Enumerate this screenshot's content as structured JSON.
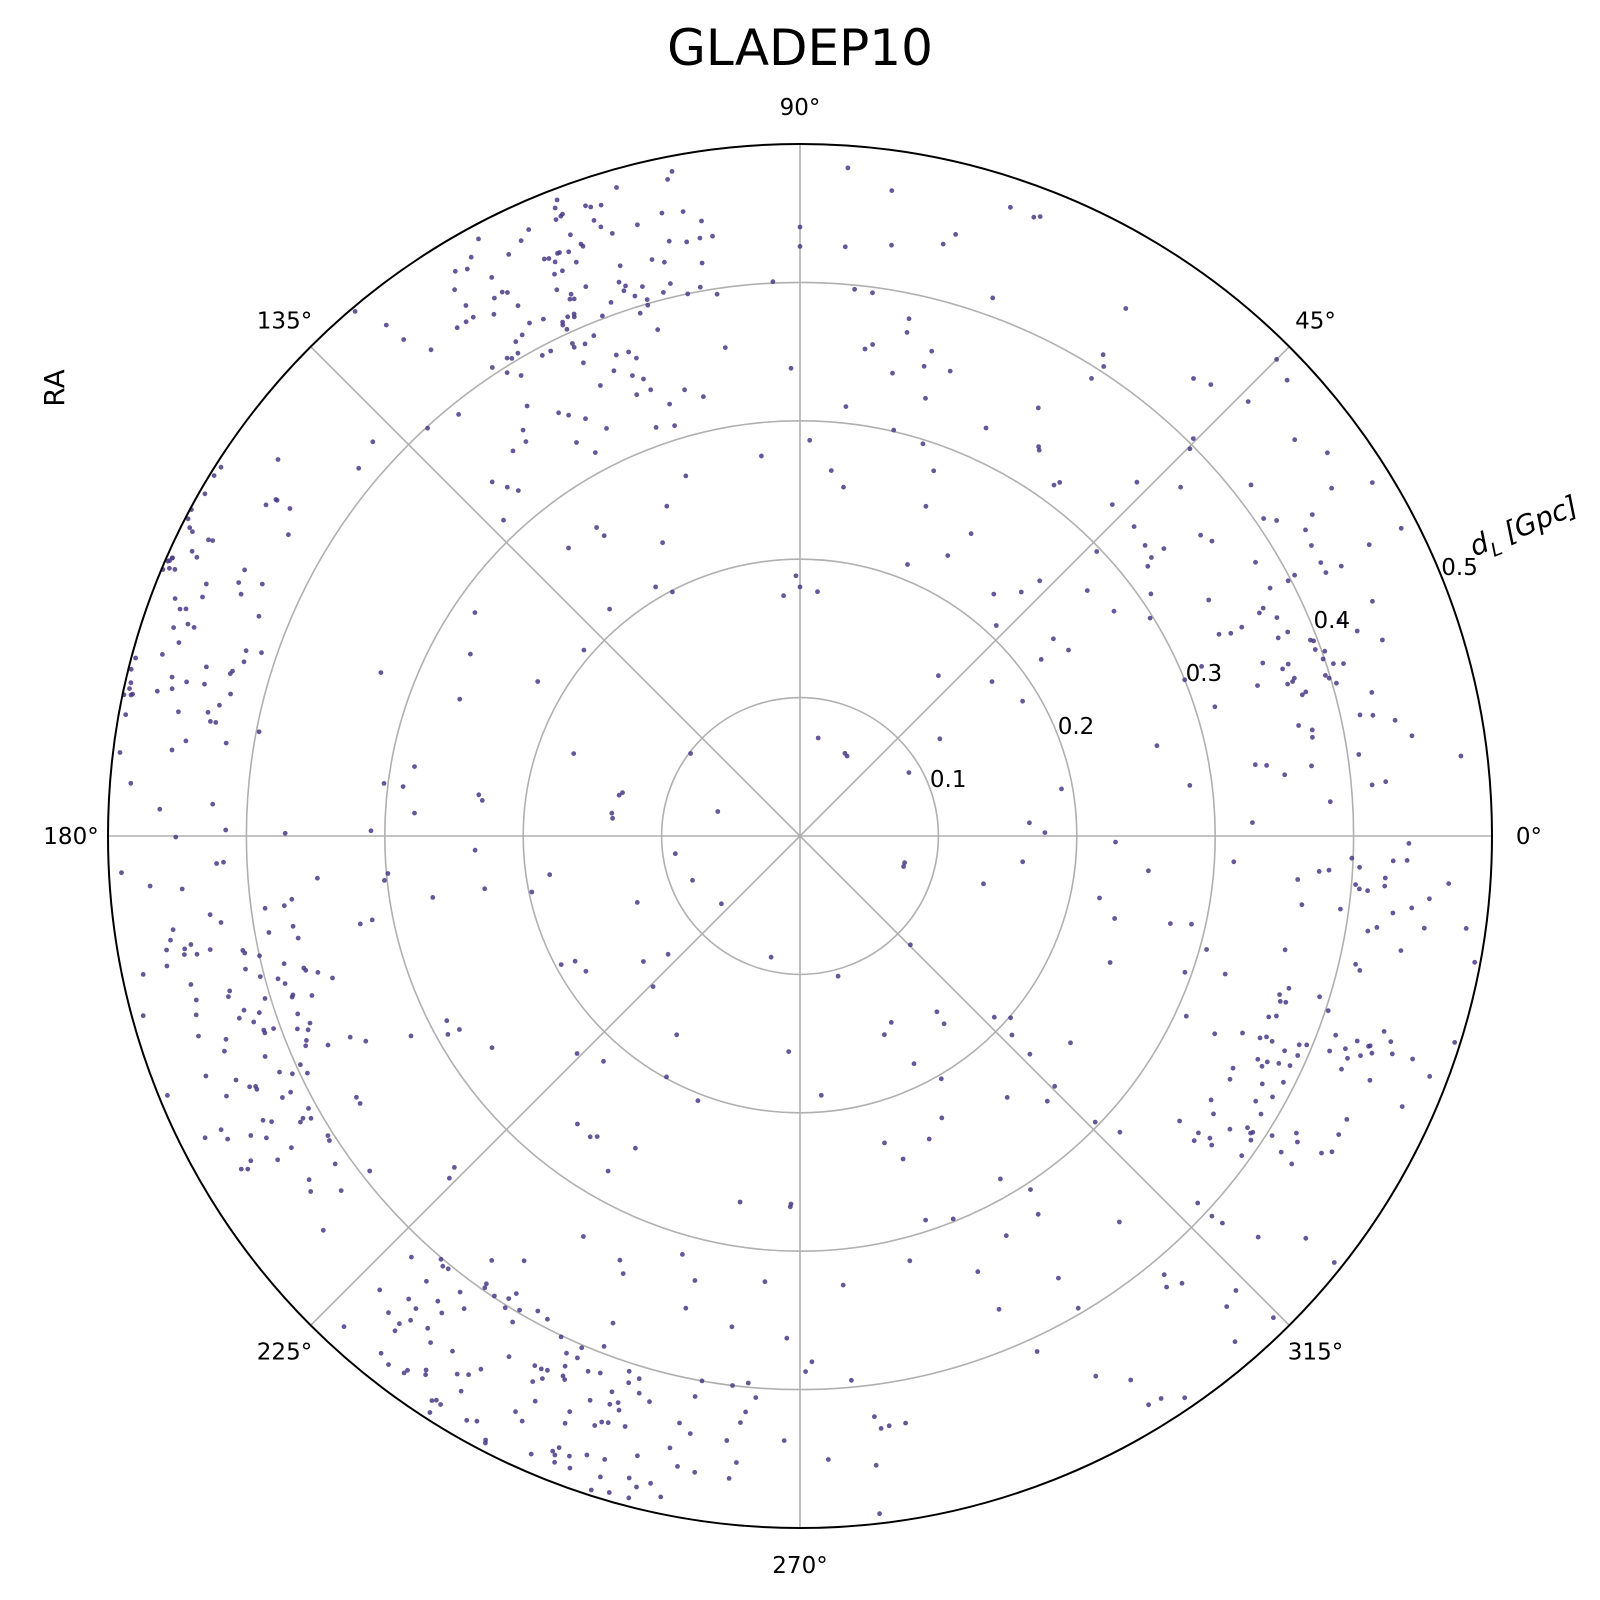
{
  "chart_data": {
    "type": "scatter",
    "projection": "polar",
    "title": "GLADEP10",
    "ylabel": "RA",
    "radial_label": "d_L [Gpc]",
    "radial_label_main": "d",
    "radial_label_sub": "L",
    "radial_label_unit": " [Gpc]",
    "theta_ticks_deg": [
      0,
      45,
      90,
      135,
      180,
      225,
      270,
      315
    ],
    "theta_tick_labels": [
      "0°",
      "45°",
      "90°",
      "135°",
      "180°",
      "225°",
      "270°",
      "315°"
    ],
    "r_ticks": [
      0.1,
      0.2,
      0.3,
      0.4,
      0.5
    ],
    "r_tick_labels": [
      "0.1",
      "0.2",
      "0.3",
      "0.4",
      "0.5"
    ],
    "rlim": [
      0,
      0.5
    ],
    "radial_label_angle_deg": 22.5,
    "grid": true,
    "colors": {
      "points": "#4b3a86",
      "grid": "#b0b0b0",
      "spine": "#000000"
    },
    "point_count": 860,
    "points": []
  }
}
